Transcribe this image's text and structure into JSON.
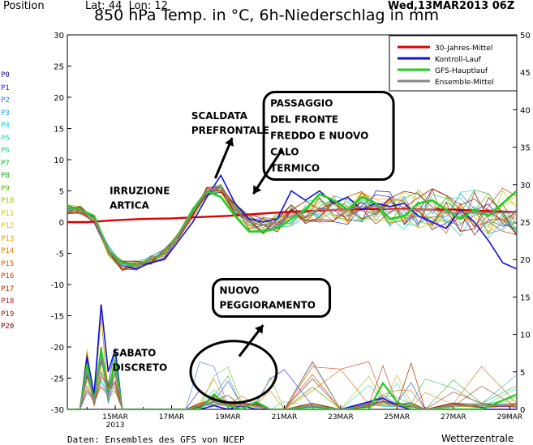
{
  "header": {
    "position_label": "Position",
    "lat_lon": "Lat: 44  Lon: 12",
    "run_time": "Wed,13MAR2013 06Z"
  },
  "chart_data": {
    "type": "line",
    "title": "850 hPa Temp. in °C, 6h-Niederschlag in mm",
    "left_axis": {
      "ylim": [
        -30,
        30
      ],
      "ticks": [
        30,
        25,
        20,
        15,
        10,
        5,
        0,
        -5,
        -10,
        -15,
        -20,
        -25,
        -30
      ]
    },
    "right_axis": {
      "ylim": [
        0,
        50
      ],
      "ticks": [
        50,
        45,
        40,
        35,
        30,
        25,
        20,
        15,
        10,
        5,
        0
      ]
    },
    "x_axis": {
      "xlim": [
        13.3,
        29.25
      ],
      "ticks": [
        {
          "x": 15,
          "label": "15MAR",
          "sub": "2013"
        },
        {
          "x": 17,
          "label": "17MAR",
          "sub": ""
        },
        {
          "x": 19,
          "label": "19MAR",
          "sub": ""
        },
        {
          "x": 21,
          "label": "21MAR",
          "sub": ""
        },
        {
          "x": 23,
          "label": "23MAR",
          "sub": ""
        },
        {
          "x": 25,
          "label": "25MAR",
          "sub": ""
        },
        {
          "x": 27,
          "label": "27MAR",
          "sub": ""
        },
        {
          "x": 29,
          "label": "29MAR",
          "sub": ""
        }
      ]
    },
    "legend": {
      "placement": "top-right",
      "entries": [
        {
          "name": "30-Jahres-Mittel",
          "color": "#e00000"
        },
        {
          "name": "Kontroll-Lauf",
          "color": "#1010e0"
        },
        {
          "name": "GFS-Hauptlauf",
          "color": "#22cc22"
        },
        {
          "name": "Ensemble-Mittel",
          "color": "#888888"
        }
      ]
    },
    "temperature_series": [
      {
        "name": "30-Jahres-Mittel",
        "color": "#e00000",
        "x": [
          13.3,
          14.0,
          15.0,
          16.0,
          17.0,
          18.0,
          19.0,
          20.0,
          21.0,
          22.0,
          23.0,
          24.0,
          25.0,
          26.0,
          27.0,
          28.0,
          29.25
        ],
        "y": [
          0.0,
          0.0,
          0.3,
          0.5,
          0.6,
          0.8,
          1.0,
          1.3,
          1.6,
          1.8,
          2.0,
          2.1,
          2.1,
          2.0,
          2.0,
          1.8,
          1.6
        ]
      },
      {
        "name": "Kontroll-Lauf",
        "color": "#1010e0",
        "x": [
          13.3,
          13.75,
          14.25,
          14.75,
          15.25,
          15.75,
          16.25,
          16.75,
          17.25,
          17.75,
          18.25,
          18.75,
          19.25,
          19.75,
          20.25,
          20.75,
          21.25,
          21.75,
          22.25,
          22.75,
          23.25,
          23.75,
          24.25,
          24.75,
          25.25,
          25.75,
          26.25,
          26.75,
          27.25,
          27.75,
          28.25,
          28.75,
          29.25
        ],
        "y": [
          2.0,
          2.0,
          1.0,
          -4.5,
          -7.0,
          -7.5,
          -6.5,
          -6.0,
          -3.0,
          0.0,
          4.0,
          7.5,
          3.0,
          0.5,
          0.0,
          0.5,
          5.0,
          3.5,
          5.0,
          3.0,
          4.0,
          2.0,
          3.0,
          2.5,
          3.0,
          1.0,
          0.0,
          -1.0,
          2.0,
          0.0,
          -3.0,
          -6.5,
          -7.5
        ]
      },
      {
        "name": "GFS-Hauptlauf",
        "color": "#22cc22",
        "x": [
          13.3,
          13.75,
          14.25,
          14.75,
          15.25,
          15.75,
          16.25,
          16.75,
          17.25,
          17.75,
          18.25,
          18.75,
          19.25,
          19.75,
          20.25,
          20.75,
          21.25,
          21.75,
          22.25,
          22.75,
          23.25,
          23.75,
          24.25,
          24.75,
          25.25,
          25.75,
          26.25,
          26.75,
          27.25,
          27.75,
          28.25,
          28.75,
          29.25
        ],
        "y": [
          2.5,
          2.0,
          1.0,
          -4.5,
          -6.5,
          -7.0,
          -6.0,
          -5.0,
          -2.0,
          2.0,
          5.0,
          4.0,
          1.0,
          -1.5,
          -1.5,
          -1.0,
          0.5,
          2.0,
          4.5,
          3.5,
          2.0,
          4.0,
          3.0,
          0.5,
          1.0,
          3.0,
          3.5,
          2.0,
          0.5,
          2.0,
          1.0,
          3.0,
          5.0
        ]
      },
      {
        "name": "Ensemble-Mittel",
        "color": "#888888",
        "x": [
          13.3,
          13.75,
          14.25,
          14.75,
          15.25,
          15.75,
          16.25,
          16.75,
          17.25,
          17.75,
          18.25,
          18.75,
          19.25,
          19.75,
          20.25,
          20.75,
          21.25,
          21.75,
          22.25,
          22.75,
          23.25,
          23.75,
          24.25,
          24.75,
          25.25,
          25.75,
          26.25,
          26.75,
          27.25,
          27.75,
          28.25,
          28.75,
          29.25
        ],
        "y": [
          2.0,
          2.0,
          0.5,
          -4.5,
          -7.0,
          -7.0,
          -6.0,
          -5.0,
          -2.0,
          1.5,
          5.0,
          5.5,
          2.0,
          0.0,
          -0.5,
          0.0,
          1.0,
          1.5,
          2.0,
          2.0,
          2.0,
          2.5,
          2.5,
          2.0,
          2.0,
          2.0,
          2.0,
          1.5,
          1.5,
          1.5,
          1.5,
          1.5,
          1.5
        ]
      }
    ],
    "precipitation_series": [
      {
        "name": "Kontroll-Lauf",
        "color": "#1010e0",
        "x": [
          13.3,
          13.75,
          14.0,
          14.25,
          14.5,
          14.75,
          15.0,
          15.25,
          15.5,
          16.0,
          16.5,
          17.0,
          17.5,
          18.0,
          18.5,
          19.0,
          19.5,
          20.0,
          20.5,
          21.0,
          22.0,
          23.0,
          24.0,
          24.5,
          25.0,
          25.5,
          26.0,
          27.0,
          28.0,
          29.25
        ],
        "y": [
          0.0,
          0.0,
          7.0,
          2.0,
          14.0,
          5.0,
          8.0,
          0.0,
          0.0,
          0.0,
          0.0,
          0.0,
          0.0,
          0.0,
          0.5,
          0.0,
          0.5,
          0.0,
          0.0,
          0.0,
          0.0,
          0.0,
          1.0,
          1.5,
          0.5,
          0.0,
          0.0,
          0.0,
          0.0,
          0.0
        ]
      },
      {
        "name": "GFS-Hauptlauf",
        "color": "#22cc22",
        "x": [
          13.3,
          13.75,
          14.0,
          14.25,
          14.5,
          14.75,
          15.0,
          15.25,
          15.5,
          16.0,
          16.5,
          17.0,
          17.5,
          18.0,
          18.5,
          19.0,
          19.5,
          20.0,
          20.5,
          21.0,
          22.0,
          23.0,
          24.0,
          24.5,
          25.0,
          25.5,
          26.0,
          27.0,
          28.0,
          29.25
        ],
        "y": [
          0.0,
          0.0,
          6.0,
          1.0,
          8.0,
          2.0,
          6.5,
          0.0,
          0.0,
          0.0,
          0.0,
          0.0,
          0.0,
          0.0,
          2.0,
          0.5,
          0.0,
          1.0,
          0.0,
          0.0,
          0.0,
          0.0,
          0.0,
          3.5,
          1.0,
          0.0,
          0.0,
          0.0,
          0.0,
          2.0
        ]
      },
      {
        "name": "Ensemble-Mittel",
        "color": "#888888",
        "x": [
          13.3,
          13.75,
          14.0,
          14.25,
          14.5,
          14.75,
          15.0,
          15.25,
          15.5,
          16.0,
          16.5,
          17.0,
          17.5,
          18.0,
          18.5,
          19.0,
          19.5,
          20.0,
          20.5,
          21.0,
          22.0,
          23.0,
          24.0,
          24.5,
          25.0,
          25.5,
          26.0,
          27.0,
          28.0,
          29.25
        ],
        "y": [
          0.0,
          0.0,
          5.0,
          1.0,
          7.0,
          2.0,
          5.0,
          0.0,
          0.0,
          0.0,
          0.0,
          0.0,
          0.0,
          0.5,
          1.0,
          0.5,
          0.5,
          0.5,
          0.0,
          0.0,
          0.5,
          0.0,
          0.5,
          1.0,
          0.5,
          0.5,
          0.0,
          0.5,
          0.5,
          0.5
        ]
      }
    ],
    "ensemble_members": [
      {
        "name": "P0",
        "color": "#1010a0"
      },
      {
        "name": "P1",
        "color": "#2020ff"
      },
      {
        "name": "P2",
        "color": "#3070ff"
      },
      {
        "name": "P3",
        "color": "#20a0ff"
      },
      {
        "name": "P4",
        "color": "#10d0e0"
      },
      {
        "name": "P5",
        "color": "#20e0c0"
      },
      {
        "name": "P6",
        "color": "#30d090"
      },
      {
        "name": "P7",
        "color": "#20c040"
      },
      {
        "name": "P8",
        "color": "#20b020"
      },
      {
        "name": "P9",
        "color": "#60c010"
      },
      {
        "name": "P10",
        "color": "#90d000"
      },
      {
        "name": "P11",
        "color": "#d0d000"
      },
      {
        "name": "P12",
        "color": "#e8c000"
      },
      {
        "name": "P13",
        "color": "#e8a000"
      },
      {
        "name": "P14",
        "color": "#e08000"
      },
      {
        "name": "P15",
        "color": "#e06000"
      },
      {
        "name": "P16",
        "color": "#d04000"
      },
      {
        "name": "P17",
        "color": "#c03000"
      },
      {
        "name": "P18",
        "color": "#b02020"
      },
      {
        "name": "P19",
        "color": "#a01010"
      },
      {
        "name": "P20",
        "color": "#800000"
      }
    ],
    "annotations": [
      {
        "id": "irruzione",
        "lines": [
          "IRRUZIONE",
          "ARTICA"
        ],
        "x": 14.8,
        "y": 4.5,
        "boxed": false
      },
      {
        "id": "scaldata",
        "lines": [
          "SCALDATA",
          "PREFRONTALE"
        ],
        "x": 17.7,
        "y": 16.5,
        "boxed": false
      },
      {
        "id": "passaggio",
        "lines": [
          "PASSAGGIO",
          "DEL FRONTE",
          "FREDDO E NUOVO",
          "CALO",
          "TERMICO"
        ],
        "x": 20.5,
        "y": 18.5,
        "boxed": true
      },
      {
        "id": "nuovo",
        "lines": [
          "NUOVO",
          "PEGGIORAMENTO"
        ],
        "x": 18.7,
        "y": -11.5,
        "boxed": true
      },
      {
        "id": "sabato",
        "lines": [
          "SABATO",
          "DISCRETO"
        ],
        "x": 14.9,
        "y": -21.5,
        "boxed": false
      }
    ]
  },
  "footer": {
    "source": "Daten: Ensembles des GFS von NCEP",
    "brand": "Wetterzentrale"
  }
}
